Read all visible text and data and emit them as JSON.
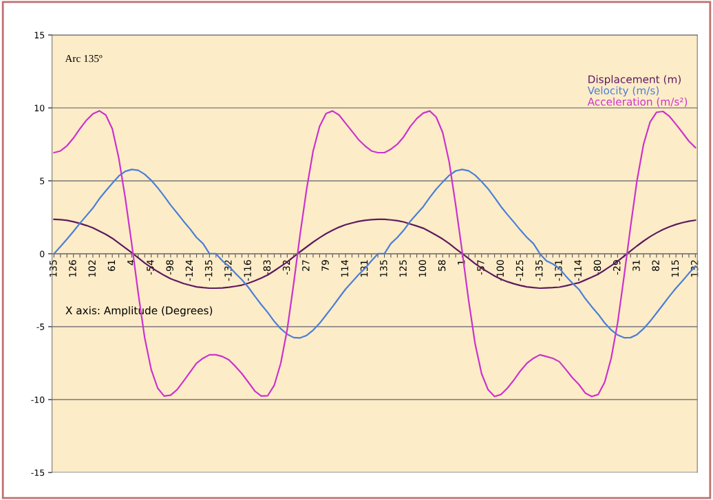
{
  "chart_data": {
    "type": "line",
    "xlabel": "X axis: Amplitude (Degrees)",
    "annotations": [
      "Arc 135º"
    ],
    "categories": [
      "135",
      null,
      null,
      "126",
      null,
      null,
      "102",
      null,
      null,
      "61",
      null,
      null,
      "4",
      null,
      null,
      "-54",
      null,
      null,
      "-98",
      null,
      null,
      "-124",
      null,
      null,
      "-135",
      null,
      null,
      "-132",
      null,
      null,
      "-116",
      null,
      null,
      "-83",
      null,
      null,
      "-32",
      null,
      null,
      "27",
      null,
      null,
      "79",
      null,
      null,
      "114",
      null,
      null,
      "131",
      null,
      null,
      "135",
      null,
      null,
      "125",
      null,
      null,
      "100",
      null,
      null,
      "58",
      null,
      null,
      "1",
      null,
      null,
      "-57",
      null,
      null,
      "-100",
      null,
      null,
      "-125",
      null,
      null,
      "-135",
      null,
      null,
      "-131",
      null,
      null,
      "-114",
      null,
      null,
      "-80",
      null,
      null,
      "-29",
      null,
      null,
      "31",
      null,
      null,
      "82",
      null,
      null,
      "115",
      null,
      null,
      "132"
    ],
    "series": [
      {
        "name": "Displacement (m)",
        "color": "#5e1a5e",
        "values": [
          2.36,
          2.34,
          2.29,
          2.2,
          2.08,
          1.94,
          1.78,
          1.55,
          1.33,
          1.06,
          0.73,
          0.4,
          0.07,
          -0.28,
          -0.63,
          -0.94,
          -1.22,
          -1.48,
          -1.71,
          -1.88,
          -2.04,
          -2.16,
          -2.27,
          -2.32,
          -2.36,
          -2.36,
          -2.34,
          -2.3,
          -2.23,
          -2.15,
          -2.02,
          -1.85,
          -1.66,
          -1.45,
          -1.17,
          -0.87,
          -0.56,
          -0.21,
          0.14,
          0.47,
          0.8,
          1.1,
          1.38,
          1.61,
          1.82,
          1.99,
          2.11,
          2.22,
          2.29,
          2.34,
          2.36,
          2.36,
          2.32,
          2.27,
          2.18,
          2.04,
          1.9,
          1.75,
          1.52,
          1.27,
          1.01,
          0.7,
          0.35,
          0.02,
          -0.33,
          -0.68,
          -0.99,
          -1.26,
          -1.52,
          -1.75,
          -1.92,
          -2.06,
          -2.18,
          -2.27,
          -2.32,
          -2.36,
          -2.34,
          -2.32,
          -2.29,
          -2.2,
          -2.09,
          -1.99,
          -1.8,
          -1.61,
          -1.4,
          -1.12,
          -0.82,
          -0.51,
          -0.16,
          0.19,
          0.54,
          0.87,
          1.17,
          1.43,
          1.66,
          1.85,
          2.01,
          2.13,
          2.23,
          2.3
        ]
      },
      {
        "name": "Velocity (m/s)",
        "color": "#4a7fd6",
        "values": [
          0,
          0.49,
          1.0,
          1.53,
          2.09,
          2.61,
          3.13,
          3.77,
          4.31,
          4.83,
          5.33,
          5.65,
          5.78,
          5.72,
          5.45,
          5.04,
          4.53,
          3.95,
          3.34,
          2.79,
          2.23,
          1.7,
          1.12,
          0.7,
          0,
          0,
          -0.49,
          -0.86,
          -1.34,
          -1.78,
          -2.3,
          -2.91,
          -3.49,
          -4.03,
          -4.64,
          -5.14,
          -5.52,
          -5.75,
          -5.77,
          -5.6,
          -5.24,
          -4.77,
          -4.2,
          -3.63,
          -3.02,
          -2.43,
          -1.94,
          -1.44,
          -1.0,
          -0.49,
          0,
          0,
          0.7,
          1.12,
          1.62,
          2.23,
          2.73,
          3.23,
          3.86,
          4.43,
          4.92,
          5.37,
          5.68,
          5.78,
          5.69,
          5.39,
          4.95,
          4.46,
          3.86,
          3.23,
          2.68,
          2.16,
          1.62,
          1.12,
          0.7,
          0,
          -0.49,
          -0.7,
          -1.0,
          -1.53,
          -2.01,
          -2.43,
          -3.07,
          -3.63,
          -4.15,
          -4.74,
          -5.22,
          -5.57,
          -5.76,
          -5.75,
          -5.54,
          -5.14,
          -4.64,
          -4.07,
          -3.49,
          -2.91,
          -2.36,
          -1.86,
          -1.34,
          -0.86
        ]
      },
      {
        "name": "Acceleration (m/s²)",
        "color": "#cc33cc",
        "values": [
          6.93,
          7.05,
          7.4,
          7.93,
          8.57,
          9.15,
          9.59,
          9.8,
          9.51,
          8.57,
          6.56,
          3.83,
          0.68,
          -2.7,
          -5.76,
          -7.93,
          -9.21,
          -9.76,
          -9.7,
          -9.32,
          -8.73,
          -8.12,
          -7.51,
          -7.17,
          -6.93,
          -6.93,
          -7.05,
          -7.28,
          -7.72,
          -8.22,
          -8.81,
          -9.42,
          -9.76,
          -9.73,
          -9.02,
          -7.51,
          -5.19,
          -2.04,
          1.36,
          4.45,
          7.05,
          8.73,
          9.62,
          9.79,
          9.51,
          8.95,
          8.4,
          7.83,
          7.4,
          7.05,
          6.93,
          6.93,
          7.17,
          7.51,
          8.03,
          8.73,
          9.27,
          9.65,
          9.79,
          9.37,
          8.31,
          6.3,
          3.35,
          0.17,
          -3.19,
          -6.17,
          -8.22,
          -9.32,
          -9.79,
          -9.65,
          -9.21,
          -8.65,
          -8.03,
          -7.51,
          -7.17,
          -6.93,
          -7.05,
          -7.17,
          -7.4,
          -7.93,
          -8.49,
          -8.95,
          -9.55,
          -9.79,
          -9.65,
          -8.81,
          -7.17,
          -4.75,
          -1.53,
          1.87,
          5.05,
          7.51,
          9.02,
          9.7,
          9.76,
          9.42,
          8.88,
          8.31,
          7.72,
          7.28
        ]
      }
    ],
    "ylim": [
      -15,
      15
    ],
    "yticks": [
      -15,
      -10,
      -5,
      0,
      5,
      10,
      15
    ],
    "grid": "y",
    "legend": "top right",
    "marker": "none",
    "line_style": "solid"
  }
}
